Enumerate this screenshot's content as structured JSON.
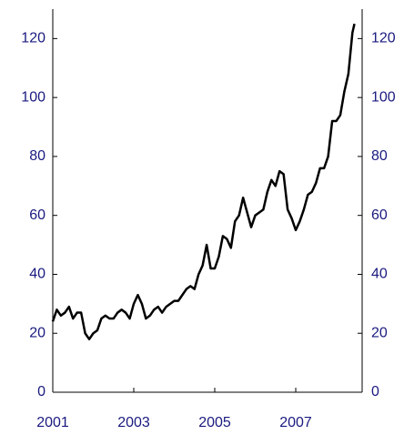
{
  "chart_data": {
    "type": "line",
    "x": [
      2001.0,
      2001.1,
      2001.2,
      2001.3,
      2001.4,
      2001.5,
      2001.6,
      2001.7,
      2001.8,
      2001.9,
      2002.0,
      2002.1,
      2002.2,
      2002.3,
      2002.4,
      2002.5,
      2002.6,
      2002.7,
      2002.8,
      2002.9,
      2003.0,
      2003.1,
      2003.2,
      2003.3,
      2003.4,
      2003.5,
      2003.6,
      2003.7,
      2003.8,
      2003.9,
      2004.0,
      2004.1,
      2004.2,
      2004.3,
      2004.4,
      2004.5,
      2004.6,
      2004.7,
      2004.8,
      2004.9,
      2005.0,
      2005.1,
      2005.2,
      2005.3,
      2005.4,
      2005.5,
      2005.6,
      2005.7,
      2005.8,
      2005.9,
      2006.0,
      2006.1,
      2006.2,
      2006.3,
      2006.4,
      2006.5,
      2006.6,
      2006.7,
      2006.8,
      2006.9,
      2007.0,
      2007.1,
      2007.2,
      2007.3,
      2007.4,
      2007.5,
      2007.6,
      2007.7,
      2007.8,
      2007.9,
      2008.0,
      2008.1,
      2008.2,
      2008.3,
      2008.4,
      2008.45
    ],
    "series": [
      {
        "color": "#000000",
        "values": [
          24,
          28,
          26,
          27,
          29,
          25,
          27,
          27,
          20,
          18,
          20,
          21,
          25,
          26,
          25,
          25,
          27,
          28,
          27,
          25,
          30,
          33,
          30,
          25,
          26,
          28,
          29,
          27,
          29,
          30,
          31,
          31,
          33,
          35,
          36,
          35,
          40,
          43,
          50,
          42,
          42,
          46,
          53,
          52,
          49,
          58,
          60,
          66,
          61,
          56,
          60,
          61,
          62,
          68,
          72,
          70,
          75,
          74,
          62,
          59,
          55,
          58,
          62,
          67,
          68,
          71,
          76,
          76,
          80,
          92,
          92,
          94,
          102,
          108,
          122,
          125
        ]
      }
    ],
    "xlim": [
      2001,
      2008.64
    ],
    "xticks": [
      2001,
      2003,
      2005,
      2007
    ],
    "ylim": [
      0,
      130
    ],
    "yticks": [
      0,
      20,
      40,
      60,
      80,
      100,
      120
    ],
    "y2lim": [
      0,
      130
    ],
    "y2ticks": [
      0,
      20,
      40,
      60,
      80,
      100,
      120
    ]
  }
}
